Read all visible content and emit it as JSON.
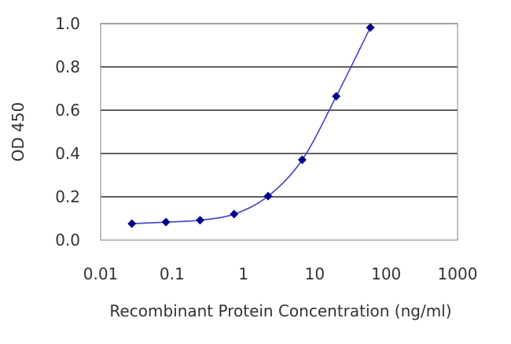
{
  "chart_data": {
    "type": "line",
    "title": "",
    "xlabel": "Recombinant Protein Concentration (ng/ml)",
    "ylabel": "OD 450",
    "x_scale": "log",
    "xlim": [
      0.01,
      1000
    ],
    "ylim": [
      0.0,
      1.0
    ],
    "x_ticks": [
      "0.01",
      "0.1",
      "1",
      "10",
      "100",
      "1000"
    ],
    "y_ticks": [
      "0.0",
      "0.2",
      "0.4",
      "0.6",
      "0.8",
      "1.0"
    ],
    "grid": "horizontal",
    "legend": "none",
    "series": [
      {
        "color": "#00008b",
        "marker": "diamond",
        "x": [
          0.0274,
          0.0823,
          0.247,
          0.741,
          2.22,
          6.67,
          20,
          60
        ],
        "y": [
          0.076,
          0.083,
          0.092,
          0.12,
          0.203,
          0.371,
          0.664,
          0.982
        ]
      }
    ],
    "colors": {
      "line": "#4040c8",
      "marker": "#00008b",
      "grid": "#000000",
      "frame": "#808080"
    }
  }
}
